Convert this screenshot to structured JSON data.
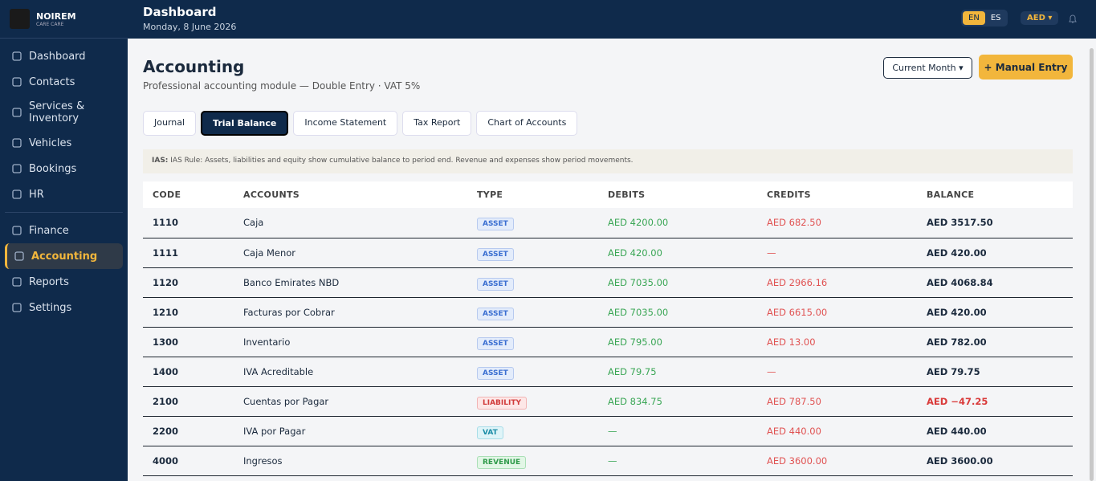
{
  "sidebar": {
    "brand": "NOIREM",
    "brand_sub": "CARE CARE",
    "nav": [
      "Dashboard",
      "Contacts",
      "Services & Inventory",
      "Vehicles",
      "Bookings",
      "HR",
      "Finance",
      "Accounting",
      "Reports",
      "Settings"
    ]
  },
  "topbar": {
    "title": "Dashboard",
    "date": "Monday, 8 June 2026",
    "languages": [
      "EN",
      "ES"
    ],
    "currency": "AED"
  },
  "page": {
    "title": "Accounting",
    "subtitle": "Professional accounting module — Double Entry · VAT 5%",
    "period": "Current Month",
    "action": "+ Manual Entry",
    "tabs": [
      "Journal",
      "Trial Balance",
      "Income Statement",
      "Tax Report",
      "Chart of Accounts"
    ],
    "notice_label": "IAS:",
    "notice": "IAS Rule: Assets, liabilities and equity show cumulative balance to period end. Revenue and expenses show period movements."
  },
  "table": {
    "headers": [
      "CODE",
      "ACCOUNTS",
      "TYPE",
      "DEBITS",
      "CREDITS",
      "BALANCE"
    ],
    "rows": [
      [
        "1110",
        "Caja",
        "ASSET",
        "AED 4200.00",
        "AED 682.50",
        "AED 3517.50"
      ],
      [
        "1111",
        "Caja Menor",
        "ASSET",
        "AED 420.00",
        "—",
        "AED 420.00"
      ],
      [
        "1120",
        "Banco Emirates NBD",
        "ASSET",
        "AED 7035.00",
        "AED 2966.16",
        "AED 4068.84"
      ],
      [
        "1210",
        "Facturas por Cobrar",
        "ASSET",
        "AED 7035.00",
        "AED 6615.00",
        "AED 420.00"
      ],
      [
        "1300",
        "Inventario",
        "ASSET",
        "AED 795.00",
        "AED 13.00",
        "AED 782.00"
      ],
      [
        "1400",
        "IVA Acreditable",
        "ASSET",
        "AED 79.75",
        "—",
        "AED 79.75"
      ],
      [
        "2100",
        "Cuentas por Pagar",
        "LIABILITY",
        "AED 834.75",
        "AED 787.50",
        "AED −47.25"
      ],
      [
        "2200",
        "IVA por Pagar",
        "VAT",
        "—",
        "AED 440.00",
        "AED 440.00"
      ],
      [
        "4000",
        "Ingresos",
        "REVENUE",
        "—",
        "AED 3600.00",
        "AED 3600.00"
      ]
    ]
  }
}
